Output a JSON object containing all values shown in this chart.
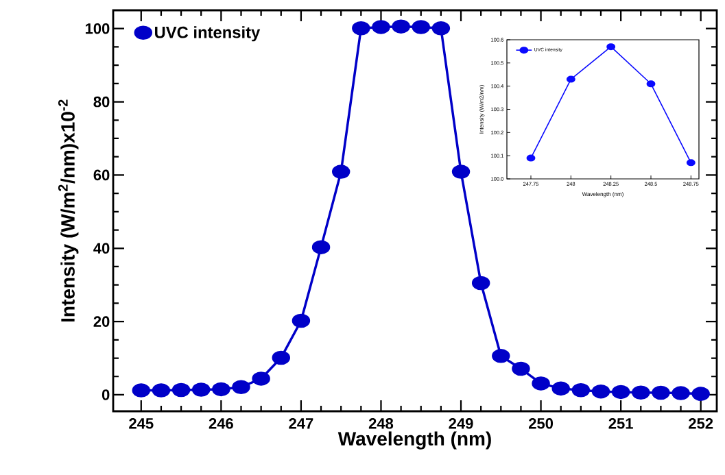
{
  "chart_data": [
    {
      "type": "line",
      "xlabel": "Wavelength (nm)",
      "ylabel": "Intensity (W/m$^{2}$/nm)x10$^{-2}$",
      "x": [
        245,
        245.25,
        245.5,
        245.75,
        246,
        246.25,
        246.5,
        246.75,
        247,
        247.25,
        247.5,
        247.75,
        248,
        248.25,
        248.5,
        248.75,
        249,
        249.25,
        249.5,
        249.75,
        250,
        250.25,
        250.5,
        250.75,
        251,
        251.25,
        251.5,
        251.75,
        252
      ],
      "series": [
        {
          "name": "UVC intensity",
          "color": "#0000c8",
          "values": [
            1.2,
            1.2,
            1.3,
            1.4,
            1.5,
            2.1,
            4.4,
            10.1,
            20.2,
            40.3,
            60.9,
            100.09,
            100.43,
            100.57,
            100.41,
            100.07,
            60.9,
            30.5,
            10.6,
            7.1,
            3.1,
            1.7,
            1.25,
            0.9,
            0.75,
            0.6,
            0.55,
            0.45,
            0.25
          ]
        }
      ],
      "xlim": [
        244.65,
        252.2
      ],
      "ylim": [
        -4.5,
        105
      ],
      "xticks": [
        245,
        246,
        247,
        248,
        249,
        250,
        251,
        252
      ],
      "yticks": [
        0,
        20,
        40,
        60,
        80,
        100
      ],
      "legend": "top left",
      "marker": "circle",
      "line_style": "solid"
    },
    {
      "type": "line",
      "xlabel": "Wavelength (nm)",
      "ylabel": "Intensity (W/m2/nm)",
      "x": [
        247.75,
        248,
        248.25,
        248.5,
        248.75
      ],
      "series": [
        {
          "name": "UVC intensity",
          "color": "#0a0aff",
          "values": [
            100.09,
            100.43,
            100.57,
            100.41,
            100.07
          ]
        }
      ],
      "xlim": [
        247.6,
        248.8
      ],
      "ylim": [
        100.0,
        100.6
      ],
      "xticks": [
        247.75,
        248,
        248.25,
        248.5,
        248.75
      ],
      "yticks": [
        {
          "value": 100.0,
          "label": "100.0"
        },
        100.1,
        100.2,
        100.3,
        100.4,
        100.5,
        100.6
      ],
      "legend": "top left",
      "marker": "circle",
      "line_style": "solid"
    }
  ]
}
